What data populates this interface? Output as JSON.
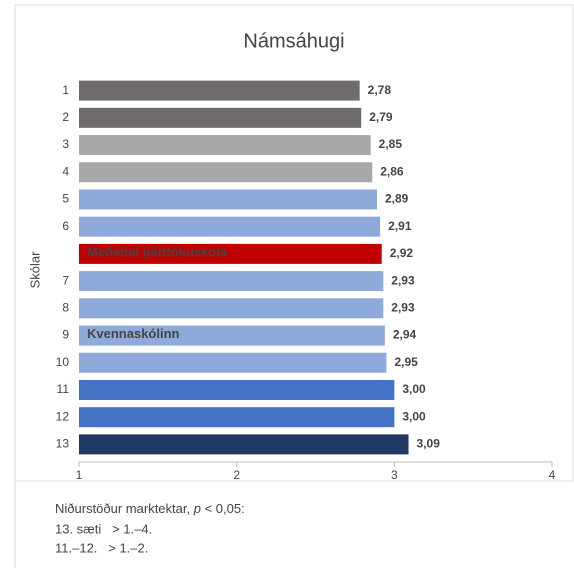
{
  "chart_data": {
    "type": "bar",
    "orientation": "horizontal",
    "title": "Námsáhugi",
    "y_label": "Skólar",
    "categories": [
      "1",
      "2",
      "3",
      "4",
      "5",
      "6",
      null,
      "7",
      "8",
      "9",
      "10",
      "11",
      "12",
      "13"
    ],
    "values": [
      2.78,
      2.79,
      2.85,
      2.86,
      2.89,
      2.91,
      2.92,
      2.93,
      2.93,
      2.94,
      2.95,
      3.0,
      3.0,
      3.09
    ],
    "value_labels": [
      "2,78",
      "2,79",
      "2,85",
      "2,86",
      "2,89",
      "2,91",
      "2,92",
      "2,93",
      "2,93",
      "2,94",
      "2,95",
      "3,00",
      "3,00",
      "3,09"
    ],
    "bar_texts": [
      null,
      null,
      null,
      null,
      null,
      null,
      "Meðaltal þátttökuskóla",
      null,
      null,
      "Kvennaskólinn",
      null,
      null,
      null,
      null
    ],
    "colors": [
      "#6f6b6b",
      "#6f6b6b",
      "#aaa7a7",
      "#aaa7a7",
      "#8eaadb",
      "#8eaadb",
      "#c00000",
      "#8eaadb",
      "#8eaadb",
      "#8eaadb",
      "#8eaadb",
      "#4472c4",
      "#4472c4",
      "#1f3864"
    ],
    "xlim": [
      1,
      4
    ],
    "xticks": [
      1,
      2,
      3,
      4
    ],
    "grid": false,
    "note": [
      "Niðurstöður marktektar, ",
      "p",
      " < 0,05:"
    ],
    "note_lines": [
      "13. sæti   > 1.–4.",
      "11.–12.   > 1.–2."
    ]
  }
}
